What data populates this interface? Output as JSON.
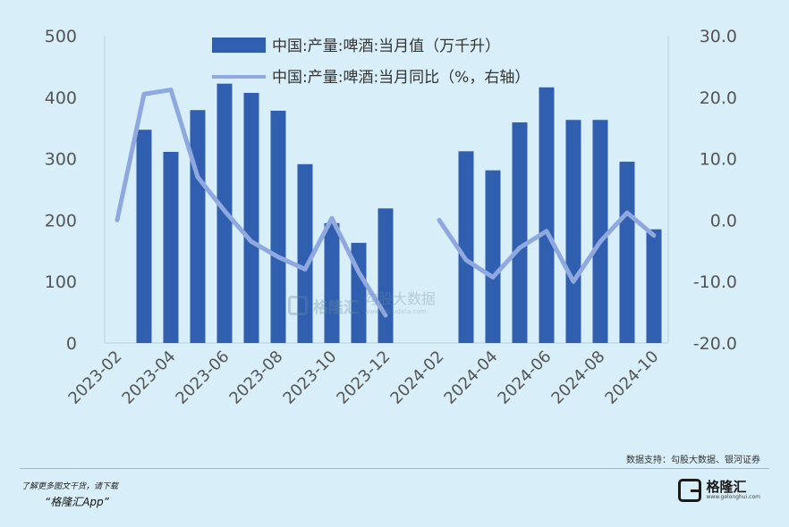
{
  "chart_data": {
    "type": "bar+line",
    "x": [
      "2023-02",
      "2023-03",
      "2023-04",
      "2023-05",
      "2023-06",
      "2023-07",
      "2023-08",
      "2023-09",
      "2023-10",
      "2023-11",
      "2023-12",
      "2024-01",
      "2024-02",
      "2024-03",
      "2024-04",
      "2024-05",
      "2024-06",
      "2024-07",
      "2024-08",
      "2024-09",
      "2024-10"
    ],
    "x_tick_labels": [
      "2023-02",
      "2023-04",
      "2023-06",
      "2023-08",
      "2023-10",
      "2023-12",
      "2024-02",
      "2024-04",
      "2024-06",
      "2024-08",
      "2024-10"
    ],
    "series": [
      {
        "name": "中国:产量:啤酒:当月值（万千升）",
        "kind": "bar",
        "axis": "left",
        "color": "#2f5fae",
        "values": [
          null,
          347,
          311,
          379,
          422,
          407,
          378,
          291,
          195,
          163,
          219,
          null,
          null,
          312,
          281,
          359,
          416,
          363,
          363,
          295,
          185
        ]
      },
      {
        "name": "中国:产量:啤酒:当月同比（%，右轴）",
        "kind": "line",
        "axis": "right",
        "color": "#8fa8e0",
        "values": [
          0.0,
          20.5,
          21.2,
          7.0,
          1.5,
          -3.5,
          -6.0,
          -8.0,
          0.3,
          -8.5,
          -15.5,
          null,
          0.0,
          -6.5,
          -9.3,
          -4.5,
          -1.8,
          -10.0,
          -3.5,
          1.2,
          -2.5
        ]
      }
    ],
    "y_left": {
      "min": 0,
      "max": 500,
      "ticks": [
        "0",
        "100",
        "200",
        "300",
        "400",
        "500"
      ]
    },
    "y_right": {
      "min": -20,
      "max": 30,
      "ticks": [
        "-20.0",
        "-10.0",
        "0.0",
        "10.0",
        "20.0",
        "30.0"
      ]
    },
    "legend_position": "top",
    "grid": false
  },
  "source": "数据支持：勾股大数据、银河证券",
  "footer": {
    "promo_line1": "了解更多图文干货，请下载",
    "promo_line2": "“格隆汇App”",
    "logo_name": "格隆汇",
    "logo_url": "www.gelonghui.com"
  },
  "watermark": {
    "name": "格隆汇",
    "sub": "勾股大数据",
    "url": "www.gogudata.com"
  }
}
